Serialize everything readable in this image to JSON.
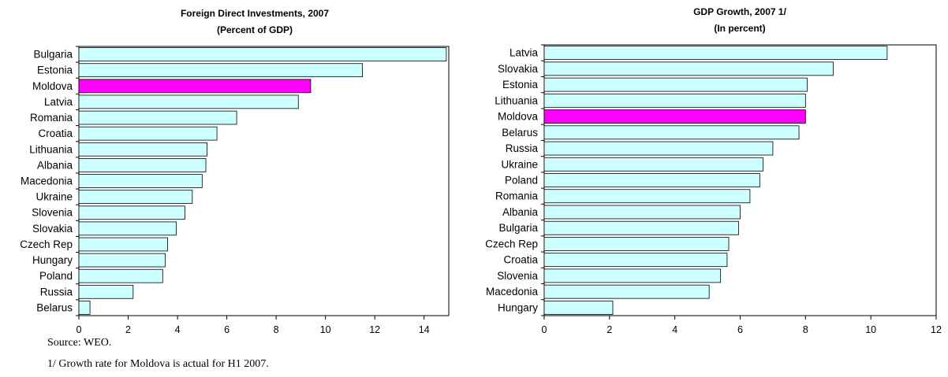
{
  "colors": {
    "bar": "#ccffff",
    "highlight": "#ff00ff",
    "bar_stroke": "#000000"
  },
  "chart_data": [
    {
      "type": "bar",
      "orientation": "horizontal",
      "title": "Foreign Direct Investments, 2007",
      "subtitle": "(Percent of GDP)",
      "xlabel": "",
      "ylabel": "",
      "xlim": [
        0,
        15
      ],
      "xticks": [
        "0",
        "2",
        "4",
        "6",
        "8",
        "10",
        "12",
        "14"
      ],
      "grid": false,
      "highlight_category": "Moldova",
      "categories": [
        "Bulgaria",
        "Estonia",
        "Moldova",
        "Latvia",
        "Romania",
        "Croatia",
        "Lithuania",
        "Albania",
        "Macedonia",
        "Ukraine",
        "Slovenia",
        "Slovakia",
        "Czech Rep",
        "Hungary",
        "Poland",
        "Russia",
        "Belarus"
      ],
      "values": [
        14.9,
        11.5,
        9.4,
        8.9,
        6.4,
        5.6,
        5.2,
        5.15,
        5.0,
        4.6,
        4.3,
        3.95,
        3.6,
        3.5,
        3.4,
        2.2,
        0.45
      ]
    },
    {
      "type": "bar",
      "orientation": "horizontal",
      "title": "GDP Growth, 2007 1/",
      "subtitle": "(In percent)",
      "xlabel": "",
      "ylabel": "",
      "xlim": [
        0,
        12
      ],
      "xticks": [
        "0",
        "2",
        "4",
        "6",
        "8",
        "10",
        "12"
      ],
      "grid": false,
      "highlight_category": "Moldova",
      "categories": [
        "Latvia",
        "Slovakia",
        "Estonia",
        "Lithuania",
        "Moldova",
        "Belarus",
        "Russia",
        "Ukraine",
        "Poland",
        "Romania",
        "Albania",
        "Bulgaria",
        "Czech Rep",
        "Croatia",
        "Slovenia",
        "Macedonia",
        "Hungary"
      ],
      "values": [
        10.5,
        8.85,
        8.05,
        8.0,
        8.0,
        7.8,
        7.0,
        6.7,
        6.6,
        6.3,
        6.0,
        5.95,
        5.65,
        5.6,
        5.4,
        5.05,
        2.1
      ]
    }
  ],
  "footnotes": {
    "source": "Source: WEO.",
    "note": "1/ Growth rate for Moldova is actual for H1 2007."
  }
}
